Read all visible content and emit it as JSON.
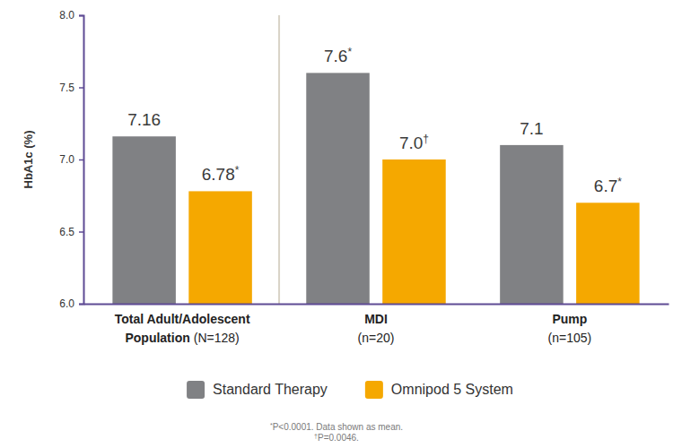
{
  "chart_data": {
    "type": "bar",
    "y_label": "HbA1c (%)",
    "categories": [
      "Total Adult/Adolescent Population",
      "MDI",
      "Pump"
    ],
    "category_counts": [
      "(N=128)",
      "(n=20)",
      "(n=105)"
    ],
    "series": [
      {
        "name": "Standard Therapy",
        "color": "#808184",
        "values": [
          7.16,
          7.6,
          7.1
        ],
        "value_labels": [
          "7.16",
          "7.6*",
          "7.1"
        ]
      },
      {
        "name": "Omnipod 5 System",
        "color": "#f5a800",
        "values": [
          6.78,
          7.0,
          6.7
        ],
        "value_labels": [
          "6.78*",
          "7.0†",
          "6.7*"
        ]
      }
    ],
    "ylim": [
      6,
      8
    ],
    "yticks": [
      {
        "value": 6,
        "label": "6.0"
      },
      6.5,
      {
        "value": 7,
        "label": "7.0"
      },
      7.5,
      {
        "value": 8,
        "label": "8.0"
      }
    ],
    "grid": false,
    "legend": "bottom",
    "data_labels": true,
    "notes": [
      "*P<0.0001. Data shown as mean.",
      "†P=0.0046."
    ]
  }
}
